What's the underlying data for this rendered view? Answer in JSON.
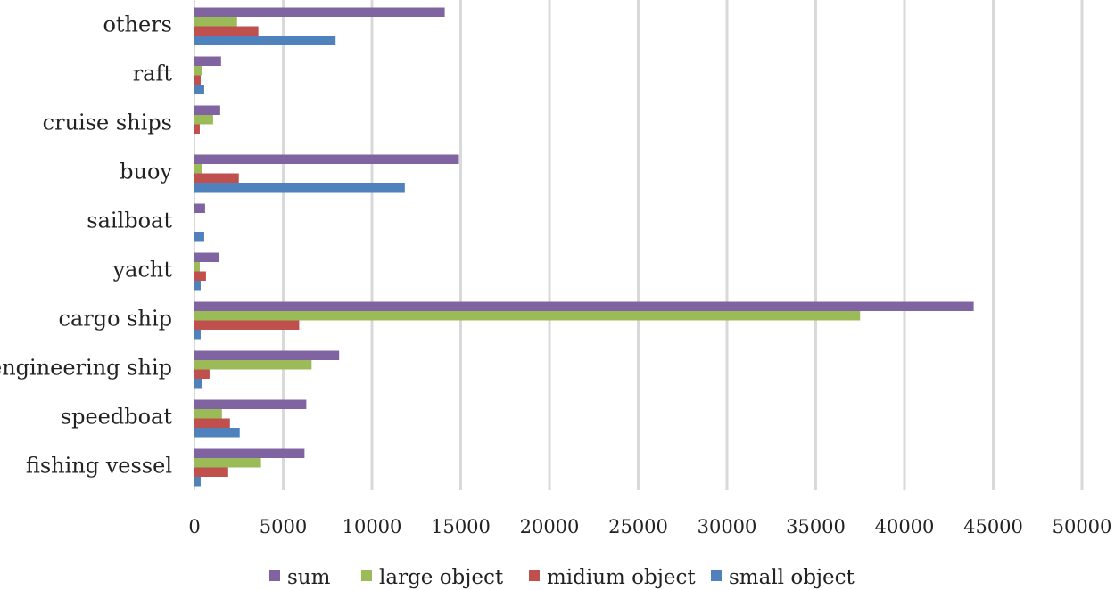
{
  "chart_data": {
    "type": "bar",
    "orientation": "horizontal",
    "categories": [
      "fishing vessel",
      "speedboat",
      "engineering ship",
      "cargo ship",
      "yacht",
      "sailboat",
      "buoy",
      "cruise ships",
      "raft",
      "others"
    ],
    "series": [
      {
        "name": "sum",
        "color": "#8064a2",
        "values": [
          6200,
          6300,
          8150,
          43900,
          1400,
          600,
          14900,
          1450,
          1500,
          14100
        ]
      },
      {
        "name": "large object",
        "color": "#9bbb59",
        "values": [
          3750,
          1550,
          6600,
          37500,
          300,
          0,
          450,
          1050,
          450,
          2400
        ]
      },
      {
        "name": "midium object",
        "color": "#c0504d",
        "values": [
          1900,
          2000,
          850,
          5900,
          650,
          0,
          2500,
          300,
          350,
          3600
        ]
      },
      {
        "name": "small object",
        "color": "#4f81bd",
        "values": [
          350,
          2550,
          450,
          350,
          350,
          550,
          11850,
          0,
          550,
          7950
        ]
      }
    ],
    "xlim": [
      0,
      50000
    ],
    "xticks": [
      0,
      5000,
      10000,
      15000,
      20000,
      25000,
      30000,
      35000,
      40000,
      45000,
      50000
    ],
    "grid": "vertical",
    "legend": "bottom",
    "title": "",
    "xlabel": "",
    "ylabel": ""
  }
}
